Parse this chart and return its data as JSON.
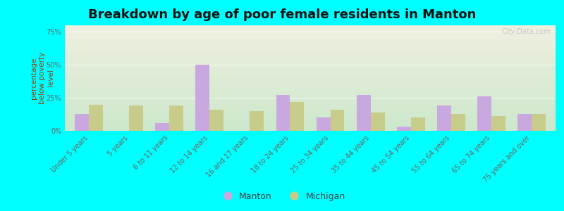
{
  "title": "Breakdown by age of poor female residents in Manton",
  "ylabel": "percentage\nbelow poverty\nlevel",
  "categories": [
    "Under 5 years",
    "5 years",
    "6 to 11 years",
    "12 to 14 years",
    "16 and 17 years",
    "18 to 24 years",
    "25 to 34 years",
    "35 to 44 years",
    "45 to 54 years",
    "55 to 64 years",
    "65 to 74 years",
    "75 years and over"
  ],
  "manton_values": [
    13,
    0,
    6,
    50,
    0,
    27,
    10,
    27,
    3,
    19,
    26,
    13
  ],
  "michigan_values": [
    20,
    19,
    19,
    16,
    15,
    22,
    16,
    14,
    10,
    13,
    11,
    13
  ],
  "manton_color": "#c9a8e0",
  "michigan_color": "#c8cc8a",
  "background_color": "#00ffff",
  "plot_bg_top": "#f0f0e0",
  "plot_bg_bottom": "#cce8cc",
  "yticks": [
    0,
    25,
    50,
    75
  ],
  "ytick_labels": [
    "0%",
    "25%",
    "50%",
    "75%"
  ],
  "ylim": [
    0,
    80
  ],
  "bar_width": 0.35,
  "title_fontsize": 13,
  "axis_label_fontsize": 7.5,
  "tick_fontsize": 7,
  "legend_fontsize": 9,
  "watermark": "City-Data.com"
}
